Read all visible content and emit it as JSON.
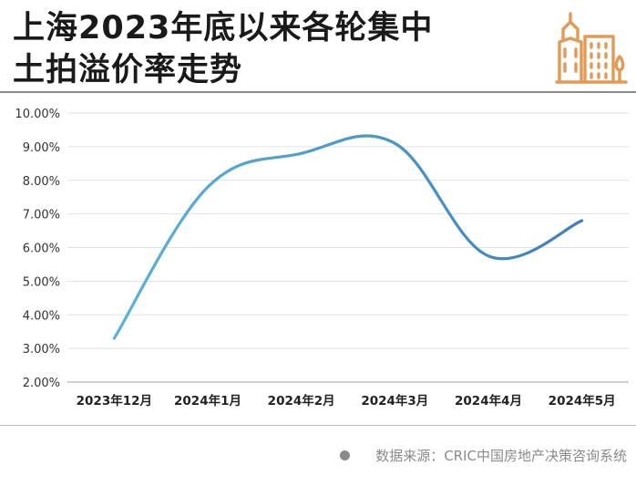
{
  "title": {
    "line1": "上海2023年底以来各轮集中",
    "line2": "土拍溢价率走势"
  },
  "logo_icon": "city-buildings-icon",
  "source": {
    "text": "数据来源：CRIC中国房地产决策咨询系统"
  },
  "colors": {
    "line": "#4a98c9",
    "accent": "#e39a55",
    "grid": "#e2e2e2",
    "text": "#222222"
  },
  "chart_data": {
    "type": "line",
    "categories": [
      "2023年12月",
      "2024年1月",
      "2024年2月",
      "2024年3月",
      "2024年4月",
      "2024年5月"
    ],
    "values": [
      3.3,
      7.8,
      8.8,
      9.1,
      5.75,
      6.8
    ],
    "unit": "%",
    "ylim": [
      2.0,
      10.0
    ],
    "yticks": [
      "2.00%",
      "3.00%",
      "4.00%",
      "5.00%",
      "6.00%",
      "7.00%",
      "8.00%",
      "9.00%",
      "10.00%"
    ],
    "grid": true,
    "smooth": true,
    "legend": "none"
  }
}
